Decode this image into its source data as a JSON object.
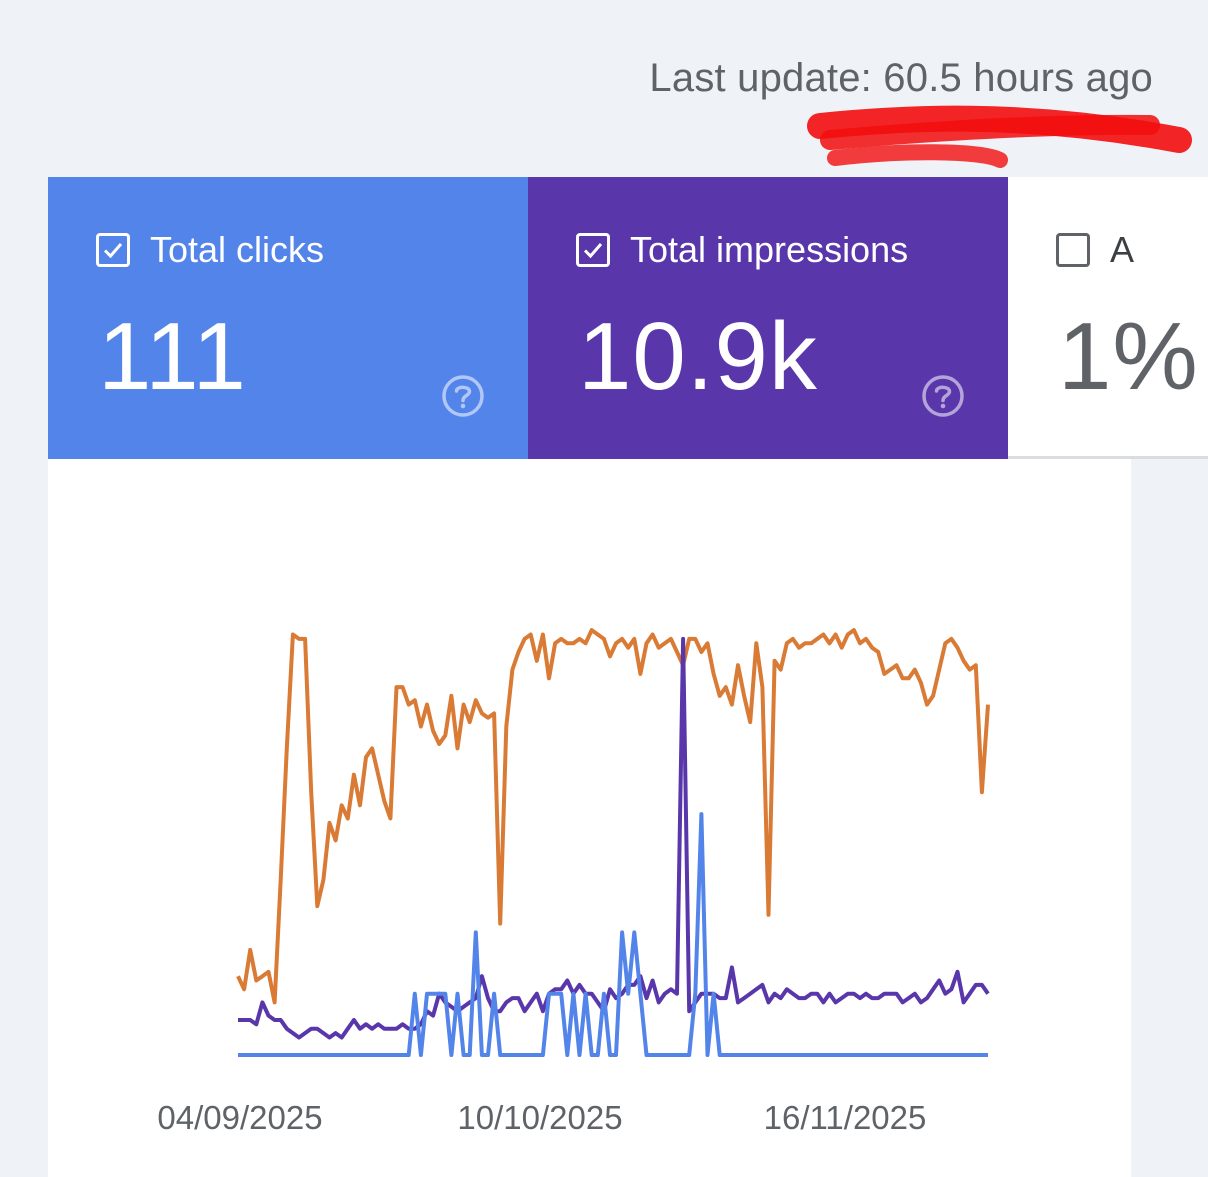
{
  "header": {
    "last_update": "Last update: 60.5 hours ago"
  },
  "tiles": [
    {
      "label": "Total clicks",
      "value": "111",
      "checked": true,
      "color": "#5384ea"
    },
    {
      "label": "Total impressions",
      "value": "10.9k",
      "checked": true,
      "color": "#5937ab"
    },
    {
      "label": "A",
      "value": "1%",
      "checked": false,
      "color": "#ffffff"
    }
  ],
  "icons": {
    "checkbox_checked": "checkbox-checked-icon",
    "checkbox_unchecked": "checkbox-unchecked-icon",
    "help": "help-circle-icon"
  },
  "colors": {
    "clicks": "#5384ea",
    "impressions": "#5937ab",
    "position": "#d97a35",
    "annotation_red": "#f20d0d"
  },
  "chart_data": {
    "type": "line",
    "x_tick_labels": [
      "04/09/2025",
      "10/10/2025",
      "16/11/2025"
    ],
    "ylim": [
      0,
      100
    ],
    "grid": false,
    "series": [
      {
        "color": "#d97a35",
        "values": [
          18,
          15,
          24,
          17,
          18,
          19,
          12,
          40,
          70,
          96,
          95,
          95,
          60,
          34,
          40,
          53,
          49,
          57,
          54,
          64,
          57,
          68,
          70,
          64,
          58,
          54,
          84,
          84,
          80,
          81,
          75,
          80,
          74,
          71,
          73,
          82,
          70,
          80,
          76,
          81,
          78,
          77,
          78,
          30,
          75,
          88,
          92,
          95,
          96,
          90,
          96,
          86,
          94,
          95,
          94,
          94,
          95,
          94,
          97,
          96,
          95,
          91,
          94,
          95,
          93,
          95,
          87,
          94,
          96,
          93,
          94,
          95,
          92,
          89,
          95,
          95,
          92,
          94,
          87,
          82,
          84,
          80,
          89,
          82,
          76,
          94,
          84,
          32,
          90,
          88,
          94,
          95,
          93,
          94,
          94,
          95,
          96,
          94,
          96,
          93,
          96,
          97,
          94,
          95,
          93,
          92,
          87,
          88,
          89,
          86,
          86,
          88,
          85,
          80,
          82,
          88,
          94,
          95,
          93,
          90,
          88,
          89,
          60,
          80
        ],
        "title": ""
      },
      {
        "color": "#5937ab",
        "values": [
          8,
          8,
          8,
          7,
          12,
          9,
          8,
          8,
          6,
          5,
          4,
          5,
          6,
          6,
          5,
          4,
          5,
          4,
          6,
          8,
          6,
          7,
          6,
          7,
          6,
          6,
          6,
          7,
          6,
          6,
          7,
          10,
          9,
          14,
          12,
          11,
          10,
          11,
          12,
          13,
          18,
          13,
          10,
          10,
          12,
          13,
          13,
          10,
          12,
          14,
          10,
          14,
          15,
          15,
          17,
          14,
          16,
          14,
          14,
          12,
          10,
          15,
          13,
          14,
          16,
          16,
          18,
          13,
          17,
          12,
          14,
          15,
          14,
          95,
          10,
          12,
          14,
          14,
          14,
          13,
          13,
          20,
          12,
          13,
          14,
          15,
          16,
          12,
          14,
          13,
          15,
          14,
          13,
          13,
          14,
          14,
          12,
          14,
          12,
          13,
          14,
          14,
          13,
          14,
          13,
          13,
          14,
          14,
          14,
          12,
          13,
          14,
          12,
          13,
          15,
          17,
          14,
          15,
          19,
          12,
          14,
          16,
          16,
          14
        ],
        "title": ""
      },
      {
        "color": "#5384ea",
        "values": [
          0,
          0,
          0,
          0,
          0,
          0,
          0,
          0,
          0,
          0,
          0,
          0,
          0,
          0,
          0,
          0,
          0,
          0,
          0,
          0,
          0,
          0,
          0,
          0,
          0,
          0,
          0,
          0,
          0,
          14,
          0,
          14,
          14,
          14,
          14,
          0,
          14,
          0,
          0,
          28,
          0,
          0,
          14,
          0,
          0,
          0,
          0,
          0,
          0,
          0,
          0,
          14,
          14,
          14,
          0,
          14,
          0,
          14,
          0,
          0,
          14,
          0,
          0,
          28,
          14,
          28,
          14,
          0,
          0,
          0,
          0,
          0,
          0,
          0,
          0,
          14,
          55,
          0,
          14,
          0,
          0,
          0,
          0,
          0,
          0,
          0,
          0,
          0,
          0,
          0,
          0,
          0,
          0,
          0,
          0,
          0,
          0,
          0,
          0,
          0,
          0,
          0,
          0,
          0,
          0,
          0,
          0,
          0,
          0,
          0,
          0,
          0,
          0,
          0,
          0,
          0,
          0,
          0,
          0,
          0,
          0,
          0,
          0,
          0
        ],
        "title": ""
      }
    ]
  }
}
